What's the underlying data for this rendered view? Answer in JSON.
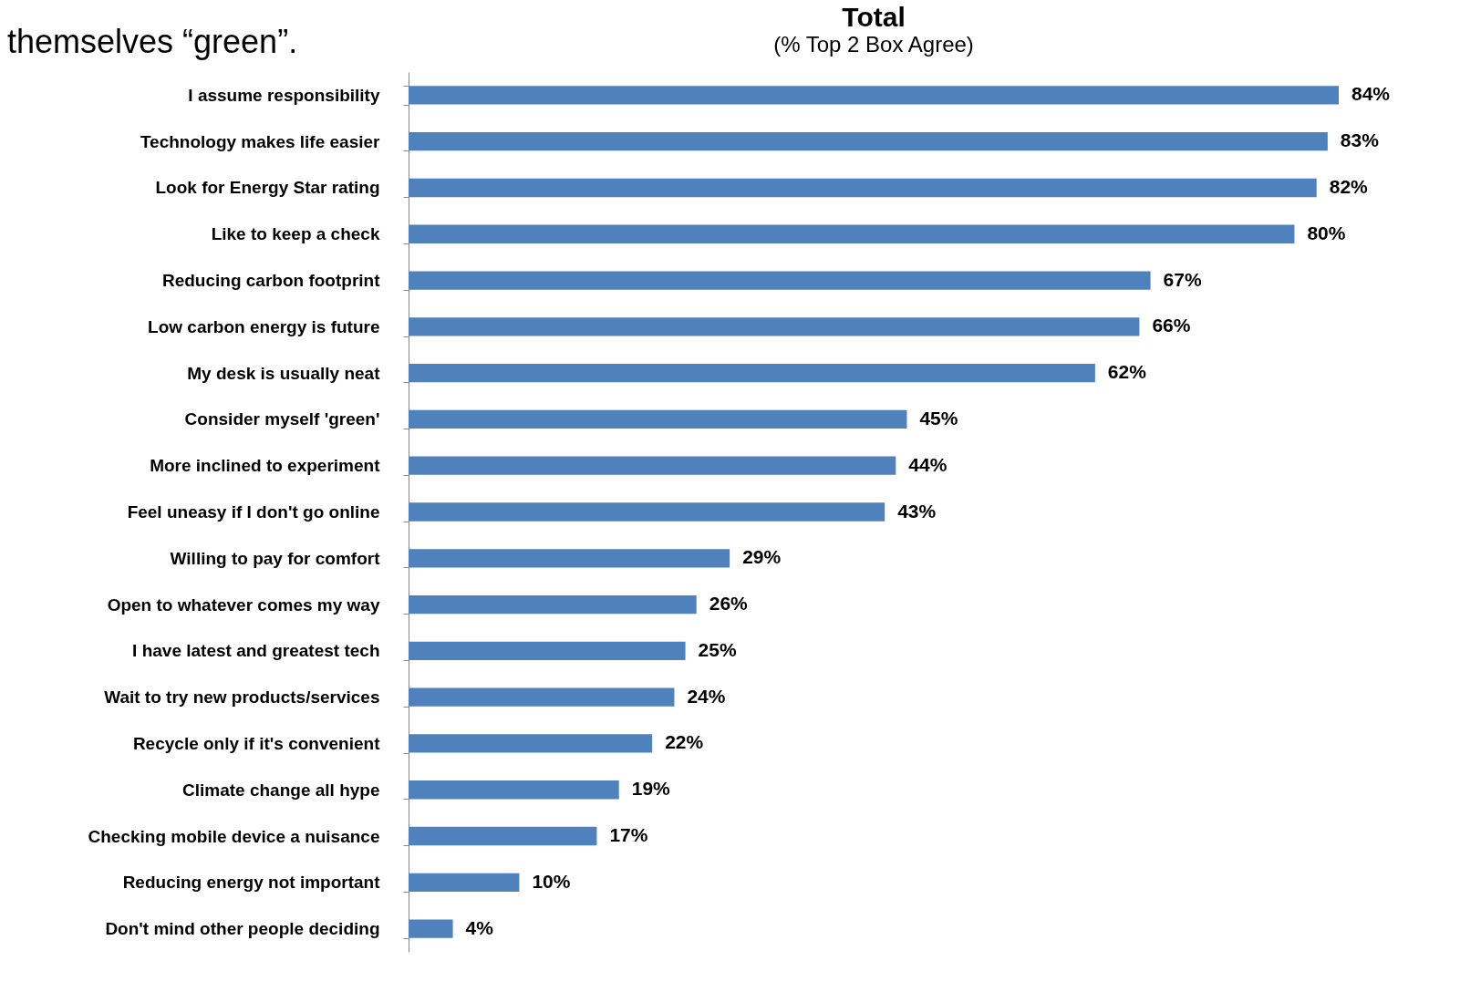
{
  "chart_data": {
    "type": "bar",
    "orientation": "horizontal",
    "title": "Total",
    "subtitle": "(% Top 2 Box Agree)",
    "annotations": [
      "themselves “green”."
    ],
    "categories": [
      "I assume responsibility",
      "Technology makes life easier",
      "Look for Energy Star rating",
      "Like to keep a check",
      "Reducing carbon footprint",
      "Low carbon energy is future",
      "My desk is usually neat",
      "Consider myself 'green'",
      "More inclined to experiment",
      "Feel uneasy if I don't go online",
      "Willing to pay for comfort",
      "Open to whatever comes my way",
      "I have latest and greatest tech",
      "Wait to try new products/services",
      "Recycle only if it's convenient",
      "Climate change all hype",
      "Checking mobile device a nuisance",
      "Reducing energy not important",
      "Don't mind other people deciding"
    ],
    "values": [
      84,
      83,
      82,
      80,
      67,
      66,
      62,
      45,
      44,
      43,
      29,
      26,
      25,
      24,
      22,
      19,
      17,
      10,
      4
    ],
    "value_labels": [
      "84%",
      "83%",
      "82%",
      "80%",
      "67%",
      "66%",
      "62%",
      "45%",
      "44%",
      "43%",
      "29%",
      "26%",
      "25%",
      "24%",
      "22%",
      "19%",
      "17%",
      "10%",
      "4%"
    ],
    "color": "#4f81bd",
    "grid": false
  }
}
